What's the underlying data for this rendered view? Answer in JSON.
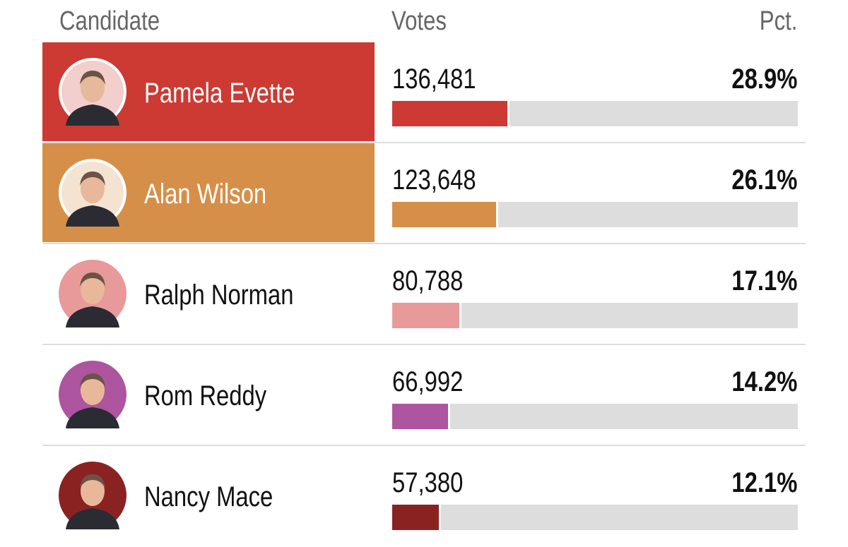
{
  "header": {
    "candidate": "Candidate",
    "votes": "Votes",
    "pct": "Pct."
  },
  "rows": [
    {
      "name": "Pamela Evette",
      "votes": {
        "value": 136481,
        "label": "136,481"
      },
      "pct": {
        "value": 28.9,
        "label": "28.9%"
      },
      "color": "#cc3a33",
      "highlight": true
    },
    {
      "name": "Alan Wilson",
      "votes": {
        "value": 123648,
        "label": "123,648"
      },
      "pct": {
        "value": 26.1,
        "label": "26.1%"
      },
      "color": "#d68f48",
      "highlight": true
    },
    {
      "name": "Ralph Norman",
      "votes": {
        "value": 80788,
        "label": "80,788"
      },
      "pct": {
        "value": 17.1,
        "label": "17.1%"
      },
      "color": "#e89a9a",
      "highlight": false
    },
    {
      "name": "Rom Reddy",
      "votes": {
        "value": 66992,
        "label": "66,992"
      },
      "pct": {
        "value": 14.2,
        "label": "14.2%"
      },
      "color": "#ad559f",
      "highlight": false
    },
    {
      "name": "Nancy Mace",
      "votes": {
        "value": 57380,
        "label": "57,380"
      },
      "pct": {
        "value": 12.1,
        "label": "12.1%"
      },
      "color": "#8b2222",
      "highlight": false
    }
  ]
}
